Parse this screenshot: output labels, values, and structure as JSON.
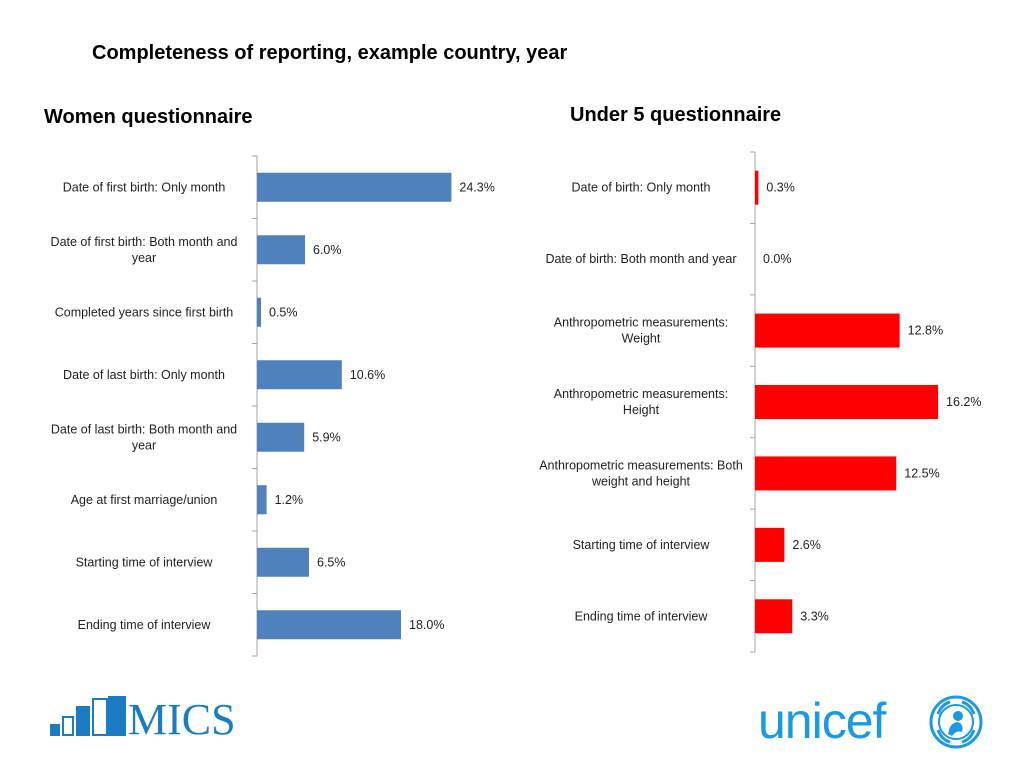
{
  "page": {
    "title": "Completeness of reporting, example country, year"
  },
  "logos": {
    "mics": "MICS",
    "unicef": "unicef"
  },
  "colors": {
    "women_bar": "#4f81bd",
    "u5_bar": "#ff0000",
    "axis": "#a6a6a6",
    "mics": "#1a7dc4",
    "unicef": "#1a9ae0"
  },
  "chart_data": [
    {
      "type": "bar",
      "orientation": "horizontal",
      "title": "Women questionnaire",
      "categories": [
        [
          "Date of first birth: Only month"
        ],
        [
          "Date of first birth: Both month and",
          "year"
        ],
        [
          "Completed years since first birth"
        ],
        [
          "Date of last birth: Only month"
        ],
        [
          "Date of last birth: Both month and",
          "year"
        ],
        [
          "Age at first marriage/union"
        ],
        [
          "Starting time of interview"
        ],
        [
          "Ending time of interview"
        ]
      ],
      "values": [
        24.3,
        6.0,
        0.5,
        10.6,
        5.9,
        1.2,
        6.5,
        18.0
      ],
      "value_labels": [
        "24.3%",
        "6.0%",
        "0.5%",
        "10.6%",
        "5.9%",
        "1.2%",
        "6.5%",
        "18.0%"
      ],
      "unit": "%",
      "xlim": [
        0,
        30
      ],
      "grid": false,
      "legend": "none"
    },
    {
      "type": "bar",
      "orientation": "horizontal",
      "title": "Under 5 questionnaire",
      "categories": [
        [
          "Date of birth: Only month"
        ],
        [
          "Date of birth: Both month and year"
        ],
        [
          "Anthropometric measurements:",
          "Weight"
        ],
        [
          "Anthropometric measurements:",
          "Height"
        ],
        [
          "Anthropometric measurements: Both",
          "weight and height"
        ],
        [
          "Starting time of interview"
        ],
        [
          "Ending time of interview"
        ]
      ],
      "values": [
        0.3,
        0.0,
        12.8,
        16.2,
        12.5,
        2.6,
        3.3
      ],
      "value_labels": [
        "0.3%",
        "0.0%",
        "12.8%",
        "16.2%",
        "12.5%",
        "2.6%",
        "3.3%"
      ],
      "unit": "%",
      "xlim": [
        0,
        20
      ],
      "grid": false,
      "legend": "none"
    }
  ]
}
